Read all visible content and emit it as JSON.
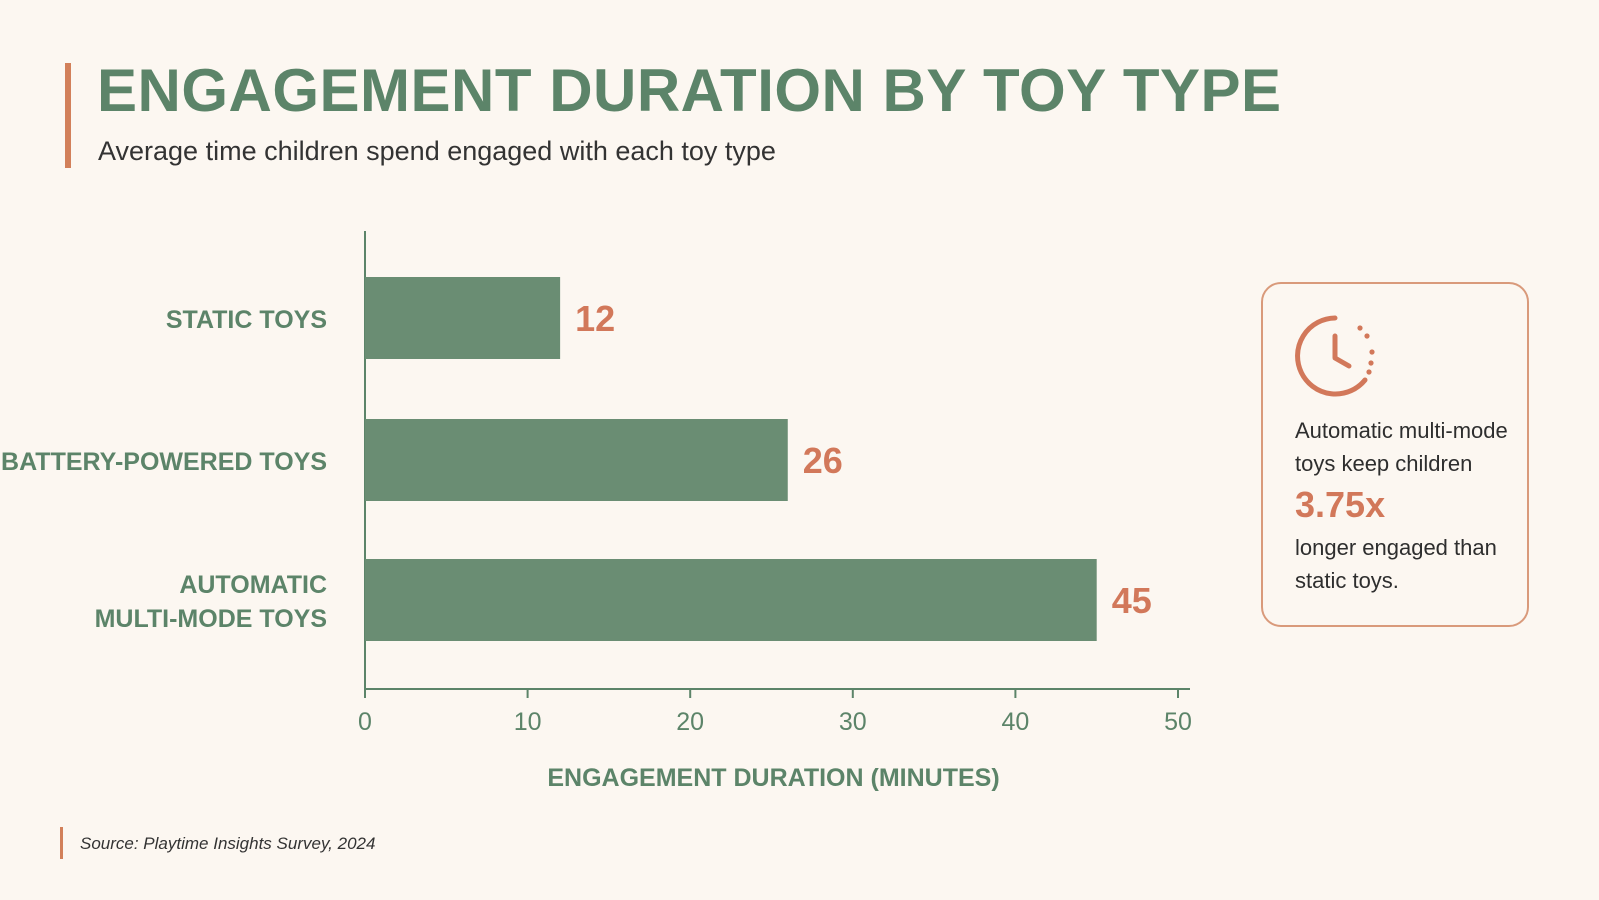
{
  "header": {
    "title": "ENGAGEMENT DURATION BY TOY TYPE",
    "subtitle": "Average time children spend engaged with each toy type"
  },
  "chart_data": {
    "type": "bar",
    "orientation": "horizontal",
    "categories": [
      [
        "STATIC TOYS"
      ],
      [
        "BATTERY-POWERED TOYS"
      ],
      [
        "AUTOMATIC",
        "MULTI-MODE TOYS"
      ]
    ],
    "values": [
      12,
      26,
      45
    ],
    "xlabel": "ENGAGEMENT DURATION (MINUTES)",
    "xlim": [
      0,
      50
    ],
    "xticks": [
      0,
      10,
      20,
      30,
      40,
      50
    ],
    "grid": false,
    "colors": {
      "bar": "#6a8d73",
      "value_label": "#d2785a",
      "axis": "#5c8469"
    }
  },
  "callout": {
    "icon": "clock-icon",
    "text_before": "Automatic multi-mode toys keep children",
    "highlight": "3.75x",
    "text_after": "longer engaged than static toys."
  },
  "footer": {
    "source": "Source: Playtime Insights Survey, 2024"
  }
}
